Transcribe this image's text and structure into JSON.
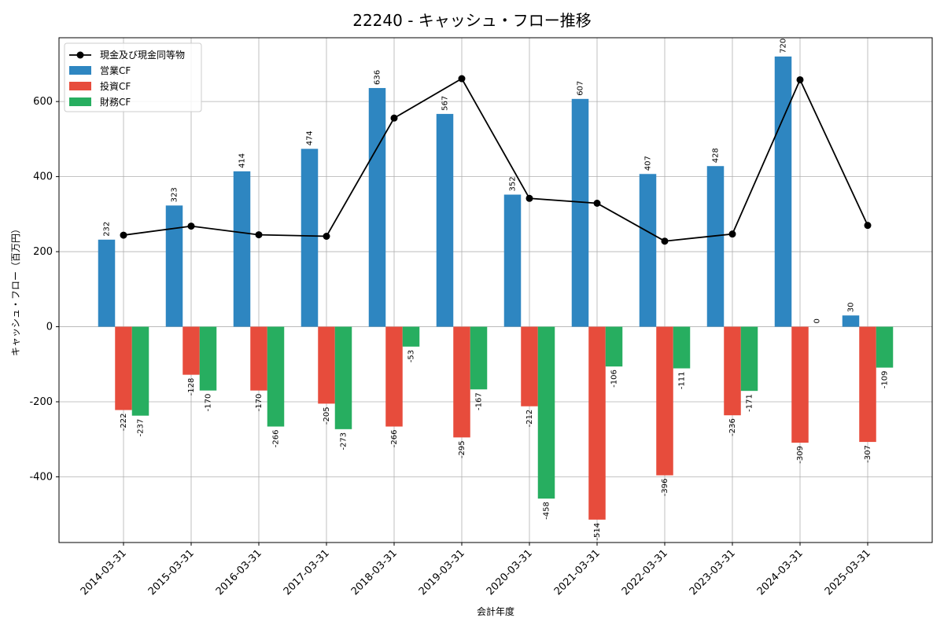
{
  "chart_data": {
    "type": "bar",
    "title": "22240 - キャッシュ・フロー推移",
    "xlabel": "会計年度",
    "ylabel": "キャッシュ・フロー（百万円）",
    "ylim": [
      -575,
      770
    ],
    "yticks": [
      -400,
      -200,
      0,
      200,
      400,
      600
    ],
    "grid": true,
    "legend_position": "top-left",
    "categories": [
      "2014-03-31",
      "2015-03-31",
      "2016-03-31",
      "2017-03-31",
      "2018-03-31",
      "2019-03-31",
      "2020-03-31",
      "2021-03-31",
      "2022-03-31",
      "2023-03-31",
      "2024-03-31",
      "2025-03-31"
    ],
    "series": [
      {
        "name": "営業CF",
        "type": "bar",
        "color": "#2e86c1",
        "values": [
          232,
          323,
          414,
          474,
          636,
          567,
          352,
          607,
          407,
          428,
          720,
          30
        ]
      },
      {
        "name": "投資CF",
        "type": "bar",
        "color": "#e74c3c",
        "values": [
          -222,
          -128,
          -170,
          -205,
          -266,
          -295,
          -212,
          -514,
          -396,
          -236,
          -309,
          -307
        ]
      },
      {
        "name": "財務CF",
        "type": "bar",
        "color": "#27ae60",
        "values": [
          -237,
          -170,
          -266,
          -273,
          -53,
          -167,
          -458,
          -106,
          -111,
          -171,
          0,
          -109
        ]
      },
      {
        "name": "現金及び現金同等物",
        "type": "line",
        "color": "#000000",
        "values": [
          244,
          268,
          245,
          241,
          556,
          661,
          342,
          329,
          228,
          247,
          658,
          270
        ]
      }
    ]
  }
}
